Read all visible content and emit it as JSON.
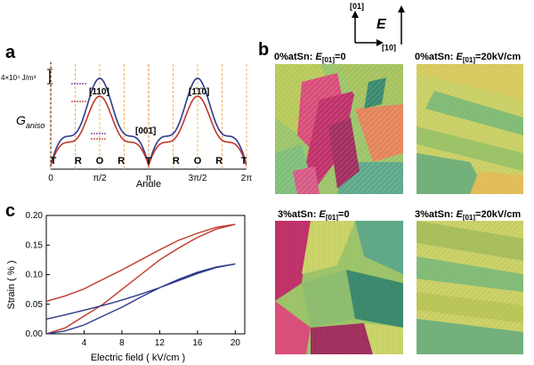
{
  "figure": {
    "panel_a_label": "a",
    "panel_b_label": "b",
    "panel_c_label": "c"
  },
  "legend": {
    "dir_01": "[01]",
    "dir_10": "[10]",
    "field": "E"
  },
  "panel_a": {
    "ylabel": "G",
    "ylabel_sub": "aniso",
    "scale": "4×10⁴ J/m³",
    "xlabel": "Angle",
    "xticks": [
      "0",
      "π/2",
      "π",
      "3π/2",
      "2π"
    ],
    "dir_110": "[110]",
    "dir_1bar10": "[1̄1̄0]",
    "dir_001bar": "[001̄]",
    "phase_labels": [
      "T",
      "R",
      "O",
      "R",
      "T",
      "R",
      "O",
      "R",
      "T"
    ]
  },
  "panel_b": {
    "titles": [
      "0%atSn: E[01]=0",
      "0%atSn: E[01]=20kV/cm",
      "3%atSn: E[01]=0",
      "3%atSn: E[01]=20kV/cm"
    ],
    "title_parts": [
      {
        "pre": "0%atSn: ",
        "E": "E",
        "sub": "[01]",
        "post": "=0"
      },
      {
        "pre": "0%atSn: ",
        "E": "E",
        "sub": "[01]",
        "post": "=20kV/cm"
      },
      {
        "pre": "3%atSn: ",
        "E": "E",
        "sub": "[01]",
        "post": "=0"
      },
      {
        "pre": "3%atSn: ",
        "E": "E",
        "sub": "[01]",
        "post": "=20kV/cm"
      }
    ]
  },
  "chart_data": {
    "type": "line",
    "title": "",
    "xlabel": "Electric field ( kV/cm )",
    "ylabel": "Strain ( % )",
    "xlim": [
      0,
      21
    ],
    "ylim": [
      0,
      0.2
    ],
    "xticks": [
      4,
      8,
      12,
      16,
      20
    ],
    "yticks": [
      0.0,
      0.05,
      0.1,
      0.15,
      0.2
    ],
    "xtick_labels": [
      "4",
      "8",
      "12",
      "16",
      "20"
    ],
    "ytick_labels": [
      "0.00",
      "0.05",
      "0.10",
      "0.15",
      "0.20"
    ],
    "series": [
      {
        "name": "red loop",
        "color": "#c0392b",
        "up": [
          [
            0,
            0.0
          ],
          [
            2,
            0.01
          ],
          [
            4,
            0.03
          ],
          [
            6,
            0.05
          ],
          [
            8,
            0.075
          ],
          [
            10,
            0.1
          ],
          [
            12,
            0.125
          ],
          [
            14,
            0.145
          ],
          [
            16,
            0.163
          ],
          [
            18,
            0.177
          ],
          [
            20,
            0.185
          ]
        ],
        "down": [
          [
            20,
            0.185
          ],
          [
            18,
            0.18
          ],
          [
            16,
            0.17
          ],
          [
            14,
            0.158
          ],
          [
            12,
            0.142
          ],
          [
            10,
            0.125
          ],
          [
            8,
            0.108
          ],
          [
            6,
            0.092
          ],
          [
            4,
            0.076
          ],
          [
            2,
            0.064
          ],
          [
            0,
            0.055
          ]
        ]
      },
      {
        "name": "blue loop",
        "color": "#2e3a8c",
        "up": [
          [
            0,
            0.0
          ],
          [
            2,
            0.005
          ],
          [
            4,
            0.015
          ],
          [
            6,
            0.03
          ],
          [
            8,
            0.045
          ],
          [
            10,
            0.062
          ],
          [
            12,
            0.078
          ],
          [
            14,
            0.092
          ],
          [
            16,
            0.104
          ],
          [
            18,
            0.113
          ],
          [
            20,
            0.118
          ]
        ],
        "down": [
          [
            20,
            0.118
          ],
          [
            18,
            0.112
          ],
          [
            16,
            0.102
          ],
          [
            14,
            0.09
          ],
          [
            12,
            0.078
          ],
          [
            10,
            0.067
          ],
          [
            8,
            0.057
          ],
          [
            6,
            0.048
          ],
          [
            4,
            0.04
          ],
          [
            2,
            0.032
          ],
          [
            0,
            0.025
          ]
        ]
      }
    ]
  }
}
